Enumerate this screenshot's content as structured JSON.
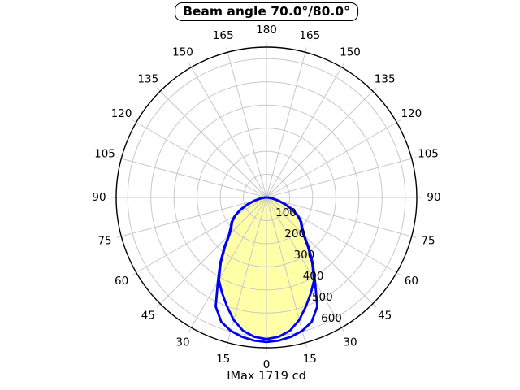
{
  "colors": {
    "curve": "#0000f2",
    "fill": "#ffffa8",
    "grid": "#c8c8c8",
    "axis": "#000000",
    "background": "#ffffff",
    "text": "#000000"
  },
  "chart_data": {
    "type": "polar",
    "title": "Beam angle 70.0°/80.0°",
    "imax_label": "IMax 1719 cd",
    "imax_cd": 1719,
    "beam_angles_deg": [
      70.0,
      80.0
    ],
    "orientation": "0° at bottom (nadir), 180° at top, angle ticks mirrored left/right",
    "grid": true,
    "angle_ticks_deg": [
      0,
      15,
      30,
      45,
      60,
      75,
      90,
      105,
      120,
      135,
      150,
      165,
      180
    ],
    "radial_ticks": [
      100,
      200,
      300,
      400,
      500,
      600
    ],
    "radial_axis_max": 650,
    "angles_deg": [
      0,
      5,
      10,
      15,
      20,
      25,
      30,
      35,
      40,
      45,
      50,
      55,
      60,
      65,
      70,
      75,
      80,
      85,
      90
    ],
    "series": [
      {
        "name": "70.0°",
        "symmetric": true,
        "values": [
          612,
          605,
          585,
          548,
          500,
          455,
          412,
          345,
          280,
          226,
          198,
          180,
          155,
          122,
          86,
          52,
          26,
          9,
          0
        ]
      },
      {
        "name": "80.0°",
        "symmetric": true,
        "values": [
          625,
          621,
          612,
          597,
          572,
          520,
          420,
          350,
          285,
          230,
          202,
          184,
          158,
          124,
          88,
          53,
          27,
          10,
          0
        ]
      }
    ]
  }
}
